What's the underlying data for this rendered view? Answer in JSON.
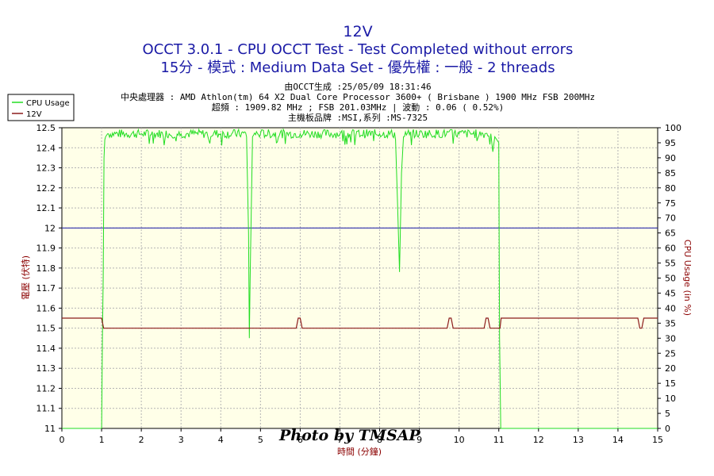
{
  "title": "12V",
  "subtitle1": "OCCT 3.0.1 - CPU OCCT Test - Test Completed without errors",
  "subtitle2": "15分 - 模式 : Medium Data Set - 優先權 : 一般 - 2 threads",
  "info": [
    "由OCCT生成 :25/05/09 18:31:46",
    "中央處理器 : AMD Athlon(tm) 64 X2 Dual Core Processor 3600+ ( Brisbane ) 1900 MHz FSB 200MHz",
    "超頻 : 1909.82 MHz ; FSB 201.03MHz | 波動 : 0.06 ( 0.52%)",
    "主機板品牌 :MSI,系列 :MS-7325"
  ],
  "watermark": "Photo by TMSAP",
  "colors": {
    "plot_bg": "#ffffe8",
    "grid": "#b4b4b4",
    "cpu_series": "#22dd22",
    "v12_series": "#8b1a1a",
    "reference_line": "#1a1aa6",
    "title": "#1a1aa6"
  },
  "chart_data": {
    "type": "line",
    "title": "12V",
    "xlabel": "時間 (分鐘)",
    "ylabel_left": "電壓 (伏特)",
    "ylabel_right": "CPU Usage (in %)",
    "xlim": [
      0,
      15
    ],
    "ylim_left": [
      11,
      12.5
    ],
    "ylim_right": [
      0,
      100
    ],
    "x_ticks": [
      "0",
      "1",
      "2",
      "3",
      "4",
      "5",
      "6",
      "7",
      "8",
      "9",
      "10",
      "11",
      "12",
      "13",
      "14",
      "15"
    ],
    "y_left_ticks": [
      "11",
      "11.1",
      "11.2",
      "11.3",
      "11.4",
      "11.5",
      "11.6",
      "11.7",
      "11.8",
      "11.9",
      "12",
      "12.1",
      "12.2",
      "12.3",
      "12.4",
      "12.5"
    ],
    "y_right_ticks": [
      "0",
      "5",
      "10",
      "15",
      "20",
      "25",
      "30",
      "35",
      "40",
      "45",
      "50",
      "55",
      "60",
      "65",
      "70",
      "75",
      "80",
      "85",
      "90",
      "95",
      "100"
    ],
    "grid": true,
    "legend_position": "top-left",
    "reference_lines": [
      {
        "axis": "left",
        "value": 12
      }
    ],
    "series": [
      {
        "name": "CPU Usage",
        "axis": "right",
        "x": [
          0,
          1.0,
          1.02,
          1.04,
          1.06,
          1.08,
          1.1,
          1.15,
          2,
          3,
          4,
          4.65,
          4.7,
          4.72,
          4.74,
          4.8,
          5,
          6,
          7,
          8,
          8.4,
          8.45,
          8.5,
          8.55,
          8.6,
          9,
          10,
          10.8,
          10.85,
          10.9,
          11.0,
          11.02,
          11.05,
          11.08,
          11.1,
          12,
          13,
          14,
          15
        ],
        "values": [
          0,
          0,
          30,
          50,
          90,
          96,
          97,
          98,
          98,
          98,
          98,
          97,
          65,
          30,
          50,
          97,
          98,
          98,
          98,
          98,
          96,
          75,
          52,
          85,
          97,
          98,
          98,
          98,
          92,
          97,
          95,
          30,
          0,
          0,
          0,
          0,
          0,
          0,
          0
        ]
      },
      {
        "name": "12V",
        "axis": "left",
        "x": [
          0,
          1.0,
          1.05,
          1.1,
          4.7,
          5.9,
          5.95,
          6.0,
          6.05,
          9.7,
          9.75,
          9.8,
          9.85,
          10.63,
          10.68,
          10.73,
          10.78,
          11.03,
          11.06,
          11.1,
          14.5,
          14.55,
          14.6,
          14.65,
          15
        ],
        "values": [
          11.55,
          11.55,
          11.5,
          11.5,
          11.5,
          11.5,
          11.55,
          11.55,
          11.5,
          11.5,
          11.55,
          11.55,
          11.5,
          11.5,
          11.55,
          11.55,
          11.5,
          11.5,
          11.55,
          11.55,
          11.55,
          11.5,
          11.5,
          11.55,
          11.55
        ]
      }
    ]
  }
}
